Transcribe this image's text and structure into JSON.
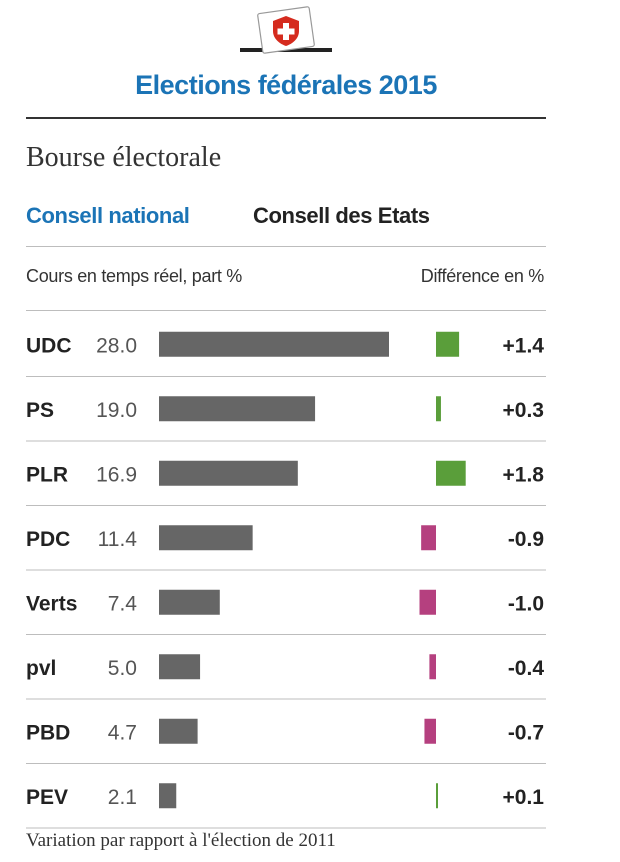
{
  "header": {
    "title": "Elections fédérales 2015",
    "subtitle": "Bourse électorale",
    "logo_icon": "swiss-ballot-box-icon",
    "tabs": [
      {
        "label": "Consell national",
        "active": true
      },
      {
        "label": "Consell des Etats",
        "active": false
      }
    ]
  },
  "chart_data": {
    "type": "bar",
    "left_header": "Cours en temps réel, part %",
    "right_header": "Différence en %",
    "categories": [
      "UDC",
      "PS",
      "PLR",
      "PDC",
      "Verts",
      "pvl",
      "PBD",
      "PEV"
    ],
    "values": [
      28.0,
      19.0,
      16.9,
      11.4,
      7.4,
      5.0,
      4.7,
      2.1
    ],
    "value_labels": [
      "28.0",
      "19.0",
      "16.9",
      "11.4",
      "7.4",
      "5.0",
      "4.7",
      "2.1"
    ],
    "differences": [
      1.4,
      0.3,
      1.8,
      -0.9,
      -1.0,
      -0.4,
      -0.7,
      0.1
    ],
    "difference_labels": [
      "+1.4",
      "+0.3",
      "+1.8",
      "-0.9",
      "-1.0",
      "-0.4",
      "-0.7",
      "+0.1"
    ],
    "colors": {
      "bar": "#666666",
      "positive": "#5a9e3a",
      "negative": "#b5407f"
    },
    "footnote": "Variation par rapport à l'élection de 2011"
  }
}
